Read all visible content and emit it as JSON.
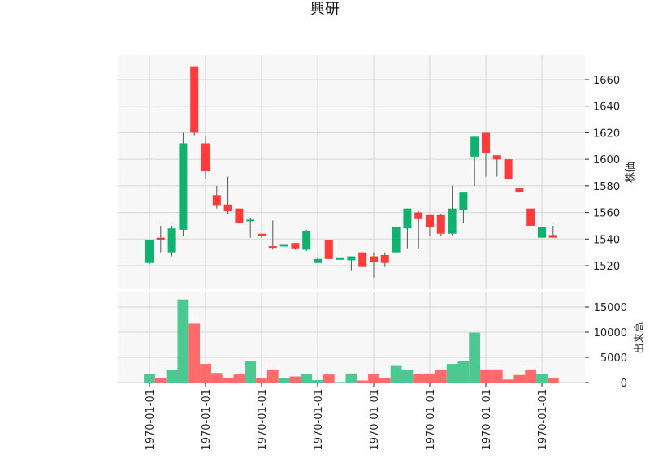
{
  "chart_data": {
    "type": "candlestick",
    "title": "興研",
    "price_axis_label": "株価",
    "volume_axis_label": "出来高",
    "up_color": "#0fb36f",
    "down_color": "#ff3b3b",
    "volume_up_color": "#4cc992",
    "volume_down_color": "#ff6b6b",
    "grid": true,
    "price_ylim": [
      1510,
      1675
    ],
    "price_ticks": [
      1520,
      1540,
      1560,
      1580,
      1600,
      1620,
      1640,
      1660
    ],
    "volume_ylim": [
      0,
      17000
    ],
    "volume_ticks": [
      0,
      5000,
      10000,
      15000
    ],
    "volume_tick_labels": [
      "0",
      "5000",
      "10000",
      "15000"
    ],
    "x_tick_index": [
      0,
      5,
      10,
      15,
      20,
      25,
      30,
      35
    ],
    "x_tick_labels": [
      "1970-01-01",
      "1970-01-01",
      "1970-01-01",
      "1970-01-01",
      "1970-01-01",
      "1970-01-01",
      "1970-01-01",
      "1970-01-01"
    ],
    "candles": [
      {
        "o": 1522,
        "h": 1539,
        "l": 1521,
        "c": 1539,
        "v": 1700
      },
      {
        "o": 1541,
        "h": 1550,
        "l": 1530,
        "c": 1539,
        "v": 900
      },
      {
        "o": 1530,
        "h": 1550,
        "l": 1527,
        "c": 1548,
        "v": 2500
      },
      {
        "o": 1547,
        "h": 1620,
        "l": 1542,
        "c": 1612,
        "v": 16500
      },
      {
        "o": 1670,
        "h": 1670,
        "l": 1618,
        "c": 1620,
        "v": 11700
      },
      {
        "o": 1612,
        "h": 1618,
        "l": 1585,
        "c": 1591,
        "v": 3700
      },
      {
        "o": 1573,
        "h": 1580,
        "l": 1563,
        "c": 1565,
        "v": 1900
      },
      {
        "o": 1566,
        "h": 1587,
        "l": 1559,
        "c": 1561,
        "v": 900
      },
      {
        "o": 1563,
        "h": 1563,
        "l": 1552,
        "c": 1552,
        "v": 1600
      },
      {
        "o": 1553,
        "h": 1556,
        "l": 1541,
        "c": 1554,
        "v": 4200
      },
      {
        "o": 1544,
        "h": 1544,
        "l": 1541,
        "c": 1542,
        "v": 800
      },
      {
        "o": 1534,
        "h": 1554,
        "l": 1532,
        "c": 1533,
        "v": 2600
      },
      {
        "o": 1534,
        "h": 1536,
        "l": 1534,
        "c": 1535,
        "v": 900
      },
      {
        "o": 1537,
        "h": 1537,
        "l": 1532,
        "c": 1533,
        "v": 1200
      },
      {
        "o": 1532,
        "h": 1547,
        "l": 1531,
        "c": 1546,
        "v": 1700
      },
      {
        "o": 1522,
        "h": 1526,
        "l": 1522,
        "c": 1525,
        "v": 500
      },
      {
        "o": 1539,
        "h": 1539,
        "l": 1525,
        "c": 1525,
        "v": 1600
      },
      {
        "o": 1525,
        "h": 1526,
        "l": 1524,
        "c": 1525,
        "v": 100
      },
      {
        "o": 1524,
        "h": 1527,
        "l": 1516,
        "c": 1527,
        "v": 1800
      },
      {
        "o": 1530,
        "h": 1530,
        "l": 1519,
        "c": 1519,
        "v": 400
      },
      {
        "o": 1527,
        "h": 1530,
        "l": 1511,
        "c": 1523,
        "v": 1700
      },
      {
        "o": 1528,
        "h": 1530,
        "l": 1519,
        "c": 1522,
        "v": 900
      },
      {
        "o": 1530,
        "h": 1549,
        "l": 1530,
        "c": 1549,
        "v": 3300
      },
      {
        "o": 1548,
        "h": 1563,
        "l": 1533,
        "c": 1563,
        "v": 2500
      },
      {
        "o": 1560,
        "h": 1561,
        "l": 1533,
        "c": 1555,
        "v": 1700
      },
      {
        "o": 1558,
        "h": 1558,
        "l": 1542,
        "c": 1549,
        "v": 1800
      },
      {
        "o": 1558,
        "h": 1559,
        "l": 1542,
        "c": 1544,
        "v": 2500
      },
      {
        "o": 1544,
        "h": 1580,
        "l": 1543,
        "c": 1563,
        "v": 3700
      },
      {
        "o": 1562,
        "h": 1574,
        "l": 1552,
        "c": 1575,
        "v": 4200
      },
      {
        "o": 1602,
        "h": 1617,
        "l": 1580,
        "c": 1617,
        "v": 9900
      },
      {
        "o": 1620,
        "h": 1620,
        "l": 1587,
        "c": 1605,
        "v": 2600
      },
      {
        "o": 1603,
        "h": 1603,
        "l": 1587,
        "c": 1600,
        "v": 2600
      },
      {
        "o": 1600,
        "h": 1600,
        "l": 1585,
        "c": 1585,
        "v": 600
      },
      {
        "o": 1578,
        "h": 1578,
        "l": 1575,
        "c": 1575,
        "v": 1500
      },
      {
        "o": 1563,
        "h": 1563,
        "l": 1550,
        "c": 1550,
        "v": 2600
      },
      {
        "o": 1541,
        "h": 1549,
        "l": 1541,
        "c": 1549,
        "v": 1700
      },
      {
        "o": 1543,
        "h": 1550,
        "l": 1541,
        "c": 1541,
        "v": 800
      }
    ]
  }
}
